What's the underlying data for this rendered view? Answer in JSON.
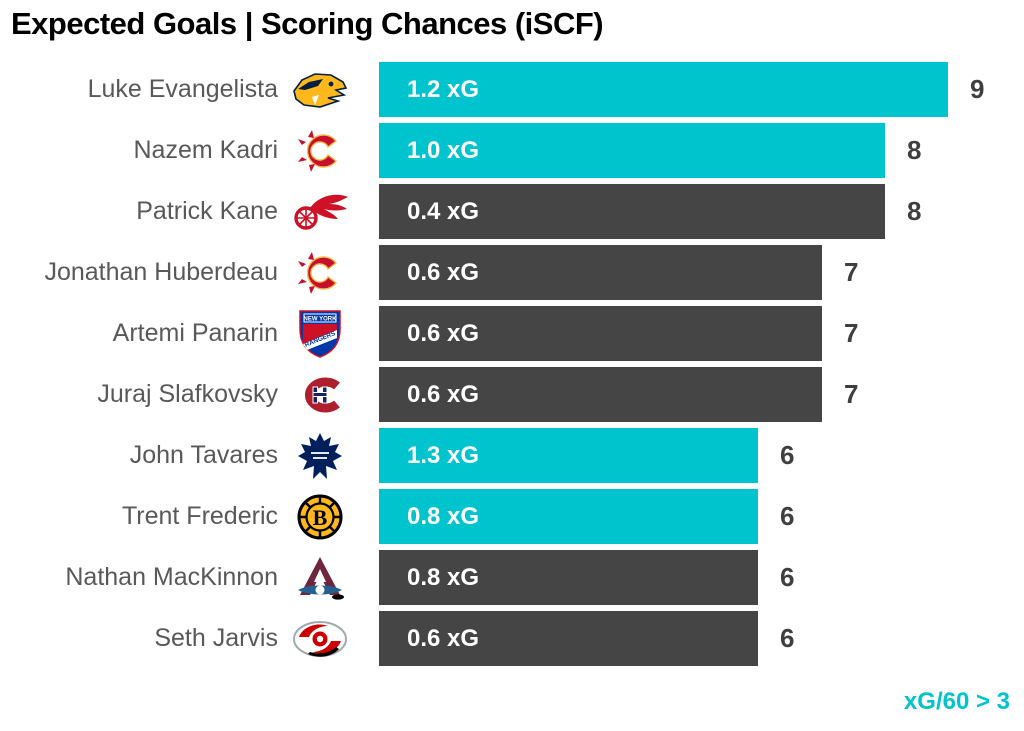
{
  "title": "Expected Goals | Scoring Chances (iSCF)",
  "footer": {
    "label": "xG/60 > 3"
  },
  "colors": {
    "highlight_bar": "#00C4CD",
    "default_bar": "#454545",
    "bar_label_text": "#FFFFFF",
    "player_name_text": "#595959",
    "count_text": "#3F3F3F",
    "title_text": "#000000",
    "footer_text": "#00C4CD"
  },
  "chart_data": {
    "type": "bar",
    "orientation": "horizontal",
    "title": "Expected Goals | Scoring Chances (iSCF)",
    "note": "xG/60 > 3",
    "legend_meaning": "Teal bars mark players with xG/60 > 3; dark bars are below that threshold",
    "x_axis": "individual scoring chances (iSCF), bar length proportional to count",
    "x_max": 9,
    "grid": false,
    "players": [
      {
        "name": "Luke Evangelista",
        "team": "nashville-predators",
        "team_icon": "nashville-predators-logo",
        "xg": 1.2,
        "xg_label": "1.2 xG",
        "iscf": 9,
        "highlight": true
      },
      {
        "name": "Nazem Kadri",
        "team": "calgary-flames",
        "team_icon": "calgary-flames-logo",
        "xg": 1.0,
        "xg_label": "1.0 xG",
        "iscf": 8,
        "highlight": true
      },
      {
        "name": "Patrick Kane",
        "team": "detroit-red-wings",
        "team_icon": "detroit-red-wings-logo",
        "xg": 0.4,
        "xg_label": "0.4 xG",
        "iscf": 8,
        "highlight": false
      },
      {
        "name": "Jonathan Huberdeau",
        "team": "calgary-flames",
        "team_icon": "calgary-flames-logo",
        "xg": 0.6,
        "xg_label": "0.6 xG",
        "iscf": 7,
        "highlight": false
      },
      {
        "name": "Artemi Panarin",
        "team": "new-york-rangers",
        "team_icon": "new-york-rangers-logo",
        "xg": 0.6,
        "xg_label": "0.6 xG",
        "iscf": 7,
        "highlight": false
      },
      {
        "name": "Juraj Slafkovsky",
        "team": "montreal-canadiens",
        "team_icon": "montreal-canadiens-logo",
        "xg": 0.6,
        "xg_label": "0.6 xG",
        "iscf": 7,
        "highlight": false
      },
      {
        "name": "John Tavares",
        "team": "toronto-maple-leafs",
        "team_icon": "toronto-maple-leafs-logo",
        "xg": 1.3,
        "xg_label": "1.3 xG",
        "iscf": 6,
        "highlight": true
      },
      {
        "name": "Trent Frederic",
        "team": "boston-bruins",
        "team_icon": "boston-bruins-logo",
        "xg": 0.8,
        "xg_label": "0.8 xG",
        "iscf": 6,
        "highlight": true
      },
      {
        "name": "Nathan MacKinnon",
        "team": "colorado-avalanche",
        "team_icon": "colorado-avalanche-logo",
        "xg": 0.8,
        "xg_label": "0.8 xG",
        "iscf": 6,
        "highlight": false
      },
      {
        "name": "Seth Jarvis",
        "team": "carolina-hurricanes",
        "team_icon": "carolina-hurricanes-logo",
        "xg": 0.6,
        "xg_label": "0.6 xG",
        "iscf": 6,
        "highlight": false
      }
    ]
  }
}
